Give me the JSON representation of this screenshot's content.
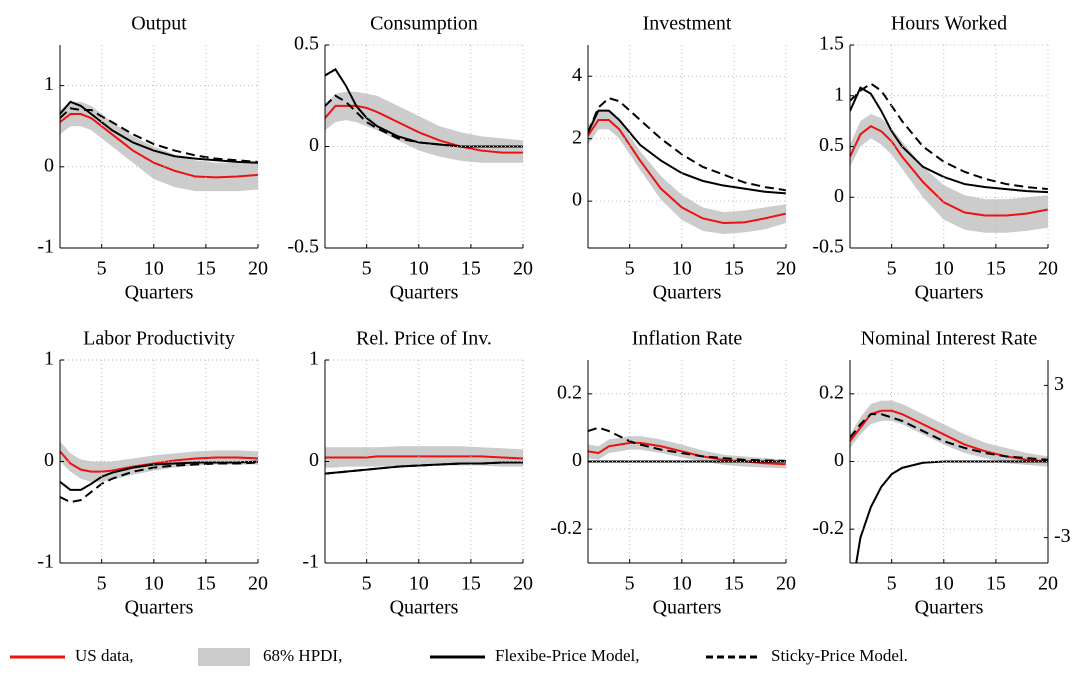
{
  "chart_data": [
    {
      "type": "line",
      "title": "Output",
      "xlabel": "Quarters",
      "x": [
        1,
        2,
        3,
        4,
        5,
        6,
        8,
        10,
        12,
        14,
        16,
        18,
        20
      ],
      "xlim": [
        1,
        20
      ],
      "xticks": [
        5,
        10,
        15,
        20
      ],
      "ylim": [
        -1,
        1.5
      ],
      "yticks": [
        -1,
        0,
        1
      ],
      "grid": true,
      "band": {
        "color": "#cccccc",
        "lower": [
          0.4,
          0.5,
          0.5,
          0.45,
          0.35,
          0.25,
          0.05,
          -0.15,
          -0.25,
          -0.3,
          -0.3,
          -0.3,
          -0.28
        ],
        "upper": [
          0.7,
          0.8,
          0.8,
          0.75,
          0.65,
          0.55,
          0.38,
          0.25,
          0.15,
          0.08,
          0.05,
          0.05,
          0.05
        ]
      },
      "series": [
        {
          "color": "#ee1111",
          "dash": "solid",
          "values": [
            0.55,
            0.65,
            0.65,
            0.6,
            0.5,
            0.4,
            0.2,
            0.05,
            -0.05,
            -0.12,
            -0.13,
            -0.12,
            -0.1
          ]
        },
        {
          "color": "#000000",
          "dash": "solid",
          "values": [
            0.65,
            0.8,
            0.75,
            0.65,
            0.55,
            0.45,
            0.3,
            0.2,
            0.13,
            0.1,
            0.08,
            0.06,
            0.05
          ]
        },
        {
          "color": "#000000",
          "dash": "dashed",
          "values": [
            0.6,
            0.72,
            0.7,
            0.7,
            0.62,
            0.55,
            0.4,
            0.28,
            0.2,
            0.14,
            0.1,
            0.08,
            0.06
          ]
        }
      ]
    },
    {
      "type": "line",
      "title": "Consumption",
      "xlabel": "Quarters",
      "x": [
        1,
        2,
        3,
        4,
        5,
        6,
        8,
        10,
        12,
        14,
        16,
        18,
        20
      ],
      "xlim": [
        1,
        20
      ],
      "xticks": [
        5,
        10,
        15,
        20
      ],
      "ylim": [
        -0.5,
        0.5
      ],
      "yticks": [
        -0.5,
        0,
        0.5
      ],
      "grid": true,
      "band": {
        "color": "#cccccc",
        "lower": [
          0.08,
          0.12,
          0.13,
          0.12,
          0.1,
          0.08,
          0.03,
          -0.02,
          -0.05,
          -0.07,
          -0.08,
          -0.08,
          -0.08
        ],
        "upper": [
          0.2,
          0.26,
          0.27,
          0.27,
          0.26,
          0.25,
          0.2,
          0.15,
          0.1,
          0.07,
          0.05,
          0.04,
          0.03
        ]
      },
      "series": [
        {
          "color": "#ee1111",
          "dash": "solid",
          "values": [
            0.14,
            0.2,
            0.2,
            0.2,
            0.19,
            0.17,
            0.12,
            0.07,
            0.03,
            0,
            -0.02,
            -0.03,
            -0.03
          ]
        },
        {
          "color": "#000000",
          "dash": "solid",
          "values": [
            0.35,
            0.38,
            0.3,
            0.2,
            0.14,
            0.1,
            0.05,
            0.02,
            0.01,
            0,
            0,
            0,
            0
          ]
        },
        {
          "color": "#000000",
          "dash": "dashed",
          "values": [
            0.2,
            0.25,
            0.22,
            0.17,
            0.12,
            0.09,
            0.04,
            0.02,
            0.01,
            0,
            0,
            0,
            0
          ]
        }
      ]
    },
    {
      "type": "line",
      "title": "Investment",
      "xlabel": "Quarters",
      "x": [
        1,
        2,
        3,
        4,
        5,
        6,
        8,
        10,
        12,
        14,
        16,
        18,
        20
      ],
      "xlim": [
        1,
        20
      ],
      "xticks": [
        5,
        10,
        15,
        20
      ],
      "ylim": [
        -1.5,
        5
      ],
      "yticks": [
        0,
        2,
        4
      ],
      "grid": true,
      "band": {
        "color": "#cccccc",
        "lower": [
          1.8,
          2.3,
          2.3,
          2.0,
          1.5,
          1.0,
          0.05,
          -0.6,
          -0.95,
          -1.05,
          -1.0,
          -0.9,
          -0.7
        ],
        "upper": [
          2.4,
          2.9,
          2.9,
          2.6,
          2.1,
          1.6,
          0.8,
          0.2,
          -0.2,
          -0.35,
          -0.3,
          -0.2,
          -0.1
        ]
      },
      "series": [
        {
          "color": "#ee1111",
          "dash": "solid",
          "values": [
            2.1,
            2.6,
            2.6,
            2.3,
            1.8,
            1.3,
            0.4,
            -0.2,
            -0.55,
            -0.7,
            -0.68,
            -0.55,
            -0.4
          ]
        },
        {
          "color": "#000000",
          "dash": "solid",
          "values": [
            2.2,
            2.9,
            2.9,
            2.6,
            2.2,
            1.8,
            1.3,
            0.9,
            0.65,
            0.5,
            0.4,
            0.3,
            0.25
          ]
        },
        {
          "color": "#000000",
          "dash": "dashed",
          "values": [
            2.2,
            3.0,
            3.3,
            3.2,
            2.9,
            2.6,
            2.0,
            1.5,
            1.1,
            0.85,
            0.6,
            0.45,
            0.35
          ]
        }
      ]
    },
    {
      "type": "line",
      "title": "Hours Worked",
      "xlabel": "Quarters",
      "x": [
        1,
        2,
        3,
        4,
        5,
        6,
        8,
        10,
        12,
        14,
        16,
        18,
        20
      ],
      "xlim": [
        1,
        20
      ],
      "xticks": [
        5,
        10,
        15,
        20
      ],
      "ylim": [
        -0.5,
        1.5
      ],
      "yticks": [
        -0.5,
        0,
        0.5,
        1,
        1.5
      ],
      "grid": true,
      "band": {
        "color": "#cccccc",
        "lower": [
          0.3,
          0.5,
          0.58,
          0.52,
          0.42,
          0.28,
          0.0,
          -0.22,
          -0.32,
          -0.35,
          -0.35,
          -0.33,
          -0.3
        ],
        "upper": [
          0.52,
          0.75,
          0.82,
          0.78,
          0.68,
          0.55,
          0.3,
          0.12,
          0.02,
          -0.02,
          -0.02,
          0,
          0.02
        ]
      },
      "series": [
        {
          "color": "#ee1111",
          "dash": "solid",
          "values": [
            0.4,
            0.62,
            0.7,
            0.65,
            0.55,
            0.4,
            0.15,
            -0.05,
            -0.15,
            -0.18,
            -0.18,
            -0.16,
            -0.12
          ]
        },
        {
          "color": "#000000",
          "dash": "solid",
          "values": [
            0.85,
            1.08,
            1.02,
            0.85,
            0.65,
            0.5,
            0.3,
            0.2,
            0.13,
            0.1,
            0.08,
            0.06,
            0.05
          ]
        },
        {
          "color": "#000000",
          "dash": "dashed",
          "values": [
            0.95,
            1.05,
            1.12,
            1.05,
            0.9,
            0.75,
            0.5,
            0.35,
            0.25,
            0.18,
            0.13,
            0.1,
            0.08
          ]
        }
      ]
    },
    {
      "type": "line",
      "title": "Labor Productivity",
      "xlabel": "Quarters",
      "x": [
        1,
        2,
        3,
        4,
        5,
        6,
        8,
        10,
        12,
        14,
        16,
        18,
        20
      ],
      "xlim": [
        1,
        20
      ],
      "xticks": [
        5,
        10,
        15,
        20
      ],
      "ylim": [
        -1,
        1
      ],
      "yticks": [
        -1,
        0,
        1
      ],
      "grid": true,
      "band": {
        "color": "#cccccc",
        "lower": [
          0,
          -0.1,
          -0.17,
          -0.2,
          -0.2,
          -0.18,
          -0.13,
          -0.09,
          -0.06,
          -0.04,
          -0.03,
          -0.03,
          -0.03
        ],
        "upper": [
          0.2,
          0.08,
          0.02,
          0,
          0,
          0,
          0.03,
          0.06,
          0.08,
          0.1,
          0.11,
          0.11,
          0.1
        ]
      },
      "series": [
        {
          "color": "#ee1111",
          "dash": "solid",
          "values": [
            0.1,
            -0.02,
            -0.08,
            -0.1,
            -0.1,
            -0.09,
            -0.05,
            -0.02,
            0.01,
            0.03,
            0.04,
            0.04,
            0.03
          ]
        },
        {
          "color": "#000000",
          "dash": "solid",
          "values": [
            -0.2,
            -0.28,
            -0.28,
            -0.22,
            -0.15,
            -0.11,
            -0.06,
            -0.03,
            -0.02,
            -0.01,
            -0.01,
            -0.01,
            0
          ]
        },
        {
          "color": "#000000",
          "dash": "dashed",
          "values": [
            -0.35,
            -0.4,
            -0.38,
            -0.3,
            -0.22,
            -0.17,
            -0.1,
            -0.06,
            -0.04,
            -0.03,
            -0.02,
            -0.02,
            -0.01
          ]
        }
      ]
    },
    {
      "type": "line",
      "title": "Rel. Price of Inv.",
      "xlabel": "Quarters",
      "x": [
        1,
        2,
        3,
        4,
        5,
        6,
        8,
        10,
        12,
        14,
        16,
        18,
        20
      ],
      "xlim": [
        1,
        20
      ],
      "xticks": [
        5,
        10,
        15,
        20
      ],
      "ylim": [
        -1,
        1
      ],
      "yticks": [
        -1,
        0,
        1
      ],
      "grid": true,
      "band": {
        "color": "#cccccc",
        "lower": [
          -0.06,
          -0.06,
          -0.05,
          -0.05,
          -0.05,
          -0.05,
          -0.04,
          -0.04,
          -0.04,
          -0.04,
          -0.04,
          -0.05,
          -0.05
        ],
        "upper": [
          0.14,
          0.14,
          0.14,
          0.14,
          0.14,
          0.14,
          0.15,
          0.15,
          0.15,
          0.15,
          0.14,
          0.13,
          0.12
        ]
      },
      "series": [
        {
          "color": "#ee1111",
          "dash": "solid",
          "values": [
            0.04,
            0.04,
            0.04,
            0.04,
            0.04,
            0.05,
            0.05,
            0.05,
            0.05,
            0.05,
            0.05,
            0.04,
            0.03
          ]
        },
        {
          "color": "#000000",
          "dash": "solid",
          "values": [
            -0.12,
            -0.11,
            -0.1,
            -0.09,
            -0.08,
            -0.07,
            -0.05,
            -0.04,
            -0.03,
            -0.02,
            -0.02,
            -0.01,
            -0.01
          ]
        },
        {
          "color": "#000000",
          "dash": "dashed",
          "values": [
            -0.12,
            -0.11,
            -0.1,
            -0.09,
            -0.08,
            -0.07,
            -0.05,
            -0.04,
            -0.03,
            -0.02,
            -0.02,
            -0.01,
            -0.01
          ]
        }
      ]
    },
    {
      "type": "line",
      "title": "Inflation Rate",
      "xlabel": "Quarters",
      "x": [
        1,
        2,
        3,
        4,
        5,
        6,
        8,
        10,
        12,
        14,
        16,
        18,
        20
      ],
      "xlim": [
        1,
        20
      ],
      "xticks": [
        5,
        10,
        15,
        20
      ],
      "ylim": [
        -0.3,
        0.3
      ],
      "yticks": [
        -0.2,
        0,
        0.2
      ],
      "grid": true,
      "band": {
        "color": "#cccccc",
        "lower": [
          0.01,
          0.005,
          0.025,
          0.03,
          0.035,
          0.035,
          0.025,
          0.012,
          0,
          -0.01,
          -0.015,
          -0.018,
          -0.02
        ],
        "upper": [
          0.05,
          0.045,
          0.065,
          0.07,
          0.075,
          0.075,
          0.065,
          0.05,
          0.033,
          0.02,
          0.015,
          0.01,
          0.005
        ]
      },
      "series": [
        {
          "color": "#ee1111",
          "dash": "solid",
          "values": [
            0.03,
            0.025,
            0.045,
            0.05,
            0.055,
            0.055,
            0.045,
            0.03,
            0.015,
            0.005,
            0,
            -0.005,
            -0.008
          ]
        },
        {
          "color": "#000000",
          "dash": "solid",
          "values": [
            0,
            0,
            0,
            0,
            0,
            0,
            0,
            0,
            0,
            0,
            0,
            0,
            0
          ]
        },
        {
          "color": "#000000",
          "dash": "dashed",
          "values": [
            0.09,
            0.1,
            0.09,
            0.075,
            0.06,
            0.05,
            0.035,
            0.025,
            0.015,
            0.01,
            0.005,
            0.003,
            0.002
          ]
        }
      ]
    },
    {
      "type": "line",
      "title": "Nominal Interest Rate",
      "xlabel": "Quarters",
      "x": [
        1,
        2,
        3,
        4,
        5,
        6,
        8,
        10,
        12,
        14,
        16,
        18,
        20
      ],
      "xlim": [
        1,
        20
      ],
      "xticks": [
        5,
        10,
        15,
        20
      ],
      "ylim": [
        -0.3,
        0.3
      ],
      "yticks": [
        -0.2,
        0,
        0.2
      ],
      "y2lim": [
        -4,
        4
      ],
      "y2ticks": [
        -3,
        3
      ],
      "grid": true,
      "band": {
        "color": "#cccccc",
        "lower": [
          0.04,
          0.08,
          0.11,
          0.12,
          0.12,
          0.11,
          0.08,
          0.05,
          0.025,
          0.01,
          -0.005,
          -0.01,
          -0.015
        ],
        "upper": [
          0.08,
          0.13,
          0.17,
          0.18,
          0.18,
          0.17,
          0.14,
          0.11,
          0.08,
          0.055,
          0.04,
          0.025,
          0.015
        ]
      },
      "series": [
        {
          "color": "#ee1111",
          "dash": "solid",
          "values": [
            0.06,
            0.1,
            0.14,
            0.15,
            0.15,
            0.14,
            0.11,
            0.08,
            0.05,
            0.03,
            0.015,
            0.005,
            0
          ]
        },
        {
          "color": "#000000",
          "dash": "solid",
          "axis": "y2",
          "values": [
            -5.5,
            -3.0,
            -1.8,
            -1.0,
            -0.5,
            -0.25,
            -0.05,
            0,
            0,
            0,
            0,
            0,
            0
          ]
        },
        {
          "color": "#000000",
          "dash": "dashed",
          "values": [
            0.07,
            0.11,
            0.14,
            0.14,
            0.13,
            0.12,
            0.09,
            0.06,
            0.04,
            0.025,
            0.015,
            0.01,
            0.005
          ]
        }
      ]
    }
  ],
  "legend": [
    {
      "name": "US data,",
      "color": "#ee1111",
      "kind": "line"
    },
    {
      "name": "68% HPDI,",
      "color": "#cccccc",
      "kind": "patch"
    },
    {
      "name": "Flexibe-Price Model,",
      "color": "#000000",
      "kind": "line"
    },
    {
      "name": "Sticky-Price Model.",
      "color": "#000000",
      "kind": "dashed"
    }
  ]
}
